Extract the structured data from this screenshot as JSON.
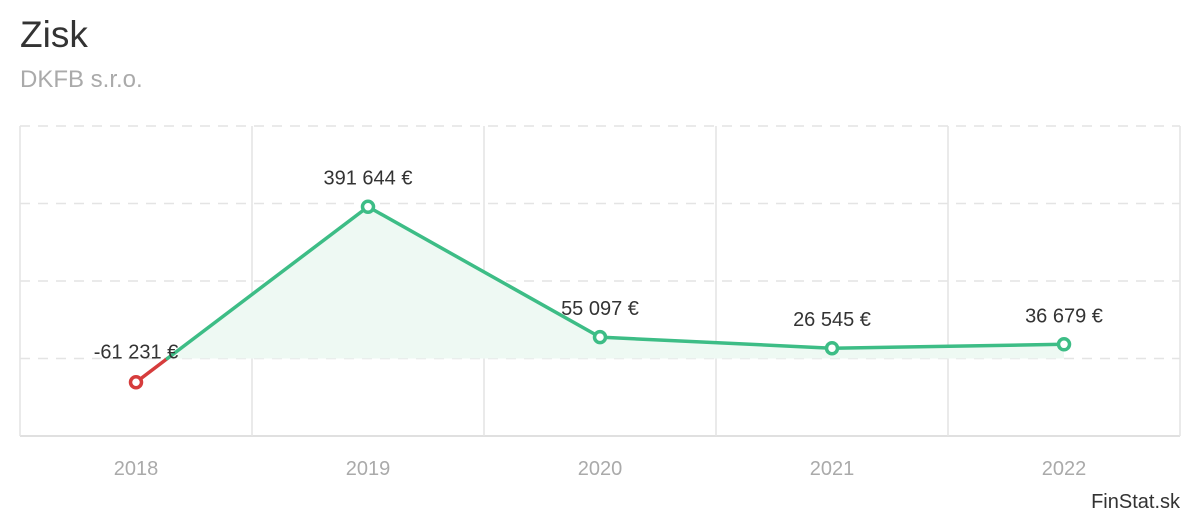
{
  "header": {
    "title": "Zisk",
    "subtitle": "DKFB s.r.o."
  },
  "brand": "FinStat.sk",
  "colors": {
    "positive": "#3dbd86",
    "negative": "#d63c3c",
    "area": "#eef9f3",
    "grid": "#e4e4e4",
    "tick": "#aaaaaa",
    "label": "#333333"
  },
  "chart_data": {
    "type": "line",
    "title": "Zisk",
    "subtitle": "DKFB s.r.o.",
    "x": [
      "2018",
      "2019",
      "2020",
      "2021",
      "2022"
    ],
    "series": [
      {
        "values": [
          -61231,
          391644,
          55097,
          26545,
          36679
        ],
        "labels": [
          "-61 231 €",
          "391 644 €",
          "55 097 €",
          "26 545 €",
          "36 679 €"
        ]
      }
    ],
    "ylim": [
      -200000,
      600000
    ],
    "grid": true,
    "area_fill": true,
    "negative_values_red": true
  }
}
